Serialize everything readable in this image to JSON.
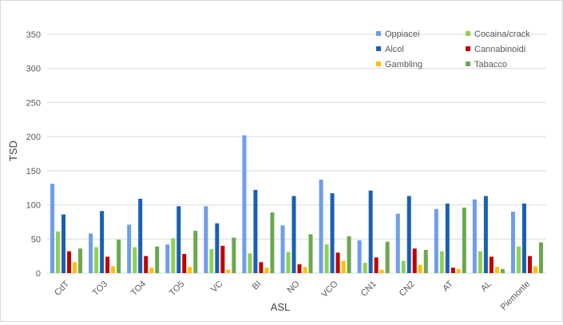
{
  "chart_data": {
    "type": "bar",
    "title": "",
    "xlabel": "ASL",
    "ylabel": "TSD",
    "ylim": [
      0,
      350
    ],
    "yticks": [
      0,
      50,
      100,
      150,
      200,
      250,
      300,
      350
    ],
    "grid": true,
    "legend_position": "top-right",
    "categories": [
      "CdT",
      "TO3",
      "TO4",
      "TO5",
      "VC",
      "BI",
      "NO",
      "VCO",
      "CN1",
      "CN2",
      "AT",
      "AL",
      "Piemonte"
    ],
    "series": [
      {
        "name": "Oppiacei",
        "color": "#6d9eeb",
        "values": [
          131,
          58,
          71,
          42,
          98,
          202,
          70,
          137,
          48,
          87,
          94,
          108,
          90
        ]
      },
      {
        "name": "Cocaina/crack",
        "color": "#8fd14f",
        "values": [
          61,
          38,
          38,
          51,
          35,
          29,
          31,
          42,
          15,
          18,
          32,
          32,
          39
        ]
      },
      {
        "name": "Alcol",
        "color": "#1a5fb4",
        "values": [
          86,
          91,
          109,
          98,
          73,
          122,
          113,
          117,
          121,
          113,
          102,
          113,
          102
        ]
      },
      {
        "name": "Cannabinoidi",
        "color": "#c00000",
        "values": [
          32,
          24,
          25,
          28,
          40,
          16,
          13,
          30,
          23,
          36,
          8,
          24,
          25
        ]
      },
      {
        "name": "Gambling",
        "color": "#ffc000",
        "values": [
          16,
          10,
          8,
          9,
          5,
          8,
          9,
          18,
          5,
          12,
          6,
          9,
          10
        ]
      },
      {
        "name": "Tabacco",
        "color": "#6aa84f",
        "values": [
          36,
          49,
          39,
          62,
          52,
          89,
          57,
          54,
          46,
          34,
          96,
          6,
          45
        ]
      }
    ]
  }
}
